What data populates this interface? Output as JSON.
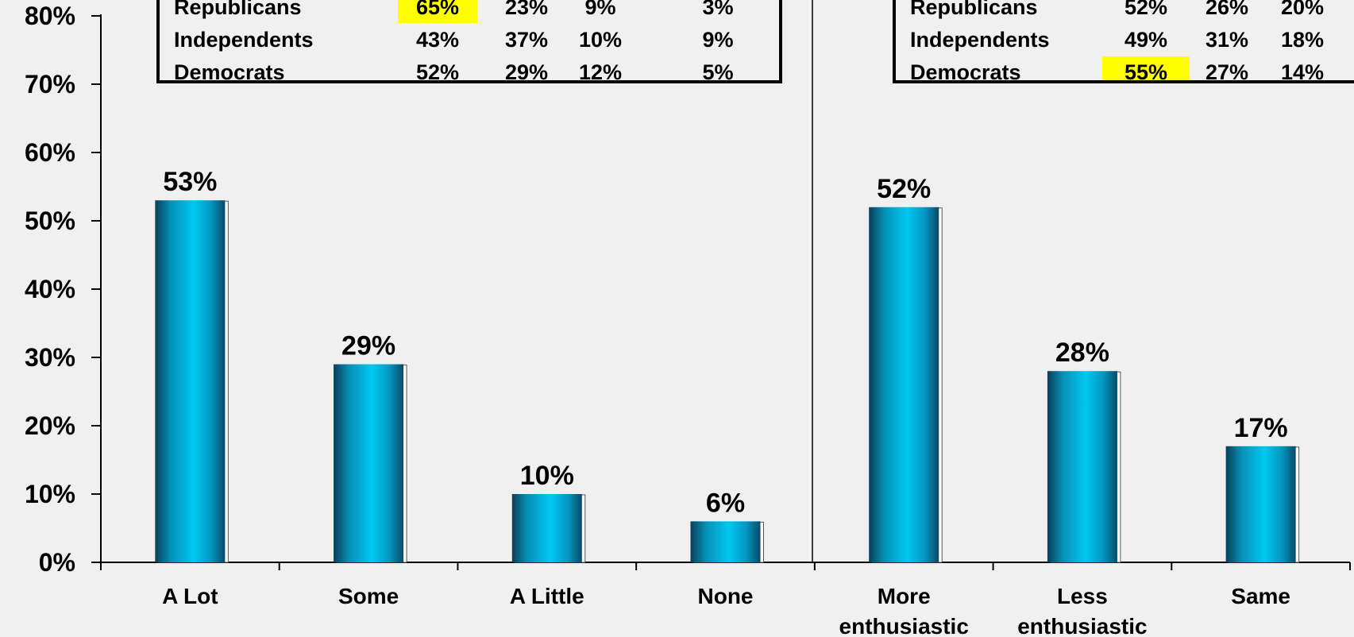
{
  "chart_data": {
    "type": "bar",
    "y_axis": {
      "ticks": [
        "0%",
        "10%",
        "20%",
        "30%",
        "40%",
        "50%",
        "60%",
        "70%",
        "80%"
      ],
      "ylim": [
        0,
        80
      ]
    },
    "grid": false,
    "bar_color": "#00c8f0",
    "panels": [
      {
        "categories": [
          "A Lot",
          "Some",
          "A Little",
          "None"
        ],
        "values": [
          53,
          29,
          10,
          6
        ],
        "data_labels": [
          "53%",
          "29%",
          "10%",
          "6%"
        ]
      },
      {
        "categories": [
          "More\nenthusiastic",
          "Less\nenthusiastic",
          "Same"
        ],
        "values": [
          52,
          28,
          17
        ],
        "data_labels": [
          "52%",
          "28%",
          "17%"
        ]
      }
    ],
    "inset_tables": [
      {
        "rows": [
          {
            "label": "Republicans",
            "cells": [
              "65%",
              "23%",
              "9%",
              "3%"
            ],
            "highlight": 0
          },
          {
            "label": "Independents",
            "cells": [
              "43%",
              "37%",
              "10%",
              "9%"
            ],
            "highlight": null
          },
          {
            "label": "Democrats",
            "cells": [
              "52%",
              "29%",
              "12%",
              "5%"
            ],
            "highlight": null
          }
        ]
      },
      {
        "rows": [
          {
            "label": "Republicans",
            "cells": [
              "52%",
              "26%",
              "20%"
            ],
            "highlight": null
          },
          {
            "label": "Independents",
            "cells": [
              "49%",
              "31%",
              "18%"
            ],
            "highlight": null
          },
          {
            "label": "Democrats",
            "cells": [
              "55%",
              "27%",
              "14%"
            ],
            "highlight": 0
          }
        ]
      }
    ],
    "highlight_color": "#ffff00"
  }
}
